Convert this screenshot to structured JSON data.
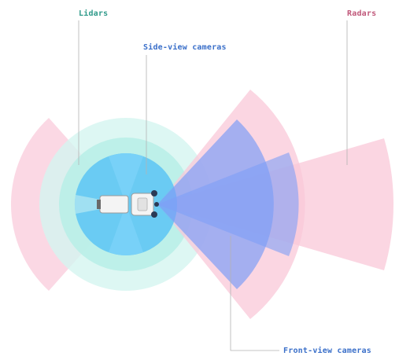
{
  "labels": {
    "lidars": "Lidars",
    "radars": "Radars",
    "side_view_cameras": "Side-view cameras",
    "front_view_cameras": "Front-view cameras"
  },
  "colors": {
    "lidars": "#2f9a8a",
    "radars": "#c0587a",
    "cameras": "#3a6fc9",
    "radar_fill": "#f9c8d8",
    "lidar_outer_fill": "#d5f5f0",
    "lidar_inner_fill": "#b7efe6",
    "side_camera_fill": "#5cc4f5",
    "front_camera_fill": "#7f9ef7",
    "leader_line": "#b3b3b3"
  }
}
